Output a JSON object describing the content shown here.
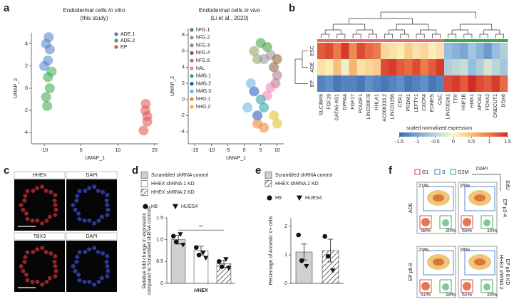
{
  "panels": [
    "a",
    "b",
    "c",
    "d",
    "e",
    "f"
  ],
  "chart_data": [
    {
      "type": "scatter",
      "title": [
        "Endodermal cells ",
        "in vitro"
      ],
      "subtitle": "(this study)",
      "x_label": "UMAP_1",
      "y_label": "UMAP_2",
      "legend": "upper right",
      "xlim": [
        -13.5,
        21
      ],
      "xticks": [
        -10,
        0,
        10,
        20
      ],
      "ylim": [
        -5,
        5
      ],
      "yticks": [
        -4,
        -2,
        0,
        2,
        4
      ],
      "series": [
        {
          "name": "ADE.1",
          "color": "#4a7fc8",
          "x": [
            -9.5,
            -8.5,
            -9,
            -10,
            -8.8
          ],
          "y": [
            4,
            3.5,
            2.5,
            2,
            4.6
          ]
        },
        {
          "name": "ADE.2",
          "color": "#3aa64a",
          "x": [
            -9,
            -8.5,
            -9.5,
            -8,
            -9.2
          ],
          "y": [
            1,
            0,
            -0.8,
            1.5,
            -1.6
          ]
        },
        {
          "name": "EP",
          "color": "#e05050",
          "x": [
            17.5,
            18,
            17,
            18,
            17.6
          ],
          "y": [
            -2,
            -3,
            -3.8,
            -2.5,
            -1.4
          ]
        }
      ]
    },
    {
      "type": "scatter",
      "title": [
        "Endodermal cells ",
        "in vivo"
      ],
      "subtitle": "(Li et al., 2020)",
      "x_label": "UMAP_1",
      "y_label": "UMAP_2",
      "legend": "upper left",
      "xlim": [
        -17,
        12
      ],
      "xticks": [
        -15,
        -10,
        -5,
        0,
        5,
        10
      ],
      "ylim": [
        -5.5,
        8.8
      ],
      "yticks": [
        -4,
        -2,
        0,
        2,
        4,
        6,
        8
      ],
      "series": [
        {
          "name": "hFG.1",
          "color": "#3a9a3a",
          "x": [
            5,
            7
          ],
          "y": [
            7,
            6.5
          ]
        },
        {
          "name": "hFG.2",
          "color": "#8aa060",
          "x": [
            3,
            4
          ],
          "y": [
            6,
            5
          ]
        },
        {
          "name": "hFG.3",
          "color": "#909090",
          "x": [
            6,
            8
          ],
          "y": [
            5,
            5.5
          ]
        },
        {
          "name": "hFG.4",
          "color": "#8a5a2a",
          "x": [
            9,
            10
          ],
          "y": [
            4,
            5
          ]
        },
        {
          "name": "hFG.5",
          "color": "#b07090",
          "x": [
            10,
            9.5
          ],
          "y": [
            3,
            2
          ]
        },
        {
          "name": "hAL",
          "color": "#f080b0",
          "x": [
            8,
            7
          ],
          "y": [
            1.5,
            0.5
          ]
        },
        {
          "name": "hMG.1",
          "color": "#20a0a0",
          "x": [
            5,
            6
          ],
          "y": [
            0,
            -1
          ]
        },
        {
          "name": "hMG.2",
          "color": "#2050c0",
          "x": [
            3,
            4
          ],
          "y": [
            1,
            -2
          ]
        },
        {
          "name": "hMG.3",
          "color": "#60b0e0",
          "x": [
            2,
            1
          ],
          "y": [
            2,
            -1
          ]
        },
        {
          "name": "hHG.1",
          "color": "#f08020",
          "x": [
            4,
            6
          ],
          "y": [
            -3,
            -3.5
          ]
        },
        {
          "name": "hHG.2",
          "color": "#e0c020",
          "x": [
            9,
            10
          ],
          "y": [
            -2,
            -3
          ]
        }
      ]
    },
    {
      "type": "heatmap",
      "rows": [
        "ESC",
        "ADE",
        "EP"
      ],
      "columns": [
        "SLC38A5",
        "FGF19",
        "GATA6-AS1",
        "DPPA4",
        "FGF17",
        "POU5F1",
        "LINC00678",
        "HHLA1",
        "AC006333.2",
        "LINC01356",
        "CER1",
        "PRDM1",
        "LEFTY1",
        "CXCR4",
        "EOMES",
        "GSC",
        "LINC00261",
        "TTR",
        "HNF1B",
        "HMX1",
        "APOA2",
        "FOXA2",
        "ONECUT1",
        "DDX6"
      ],
      "values": [
        [
          1.2,
          1.3,
          1.0,
          1.4,
          0.9,
          1.3,
          1.1,
          1.0,
          0.3,
          0.2,
          0.1,
          0.4,
          0.2,
          0.3,
          0.1,
          0.2,
          -0.8,
          -0.9,
          -1.0,
          -0.7,
          -0.9,
          -1.1,
          -0.8,
          -0.6
        ],
        [
          0.2,
          0.1,
          0.5,
          -0.1,
          0.6,
          0.2,
          0.3,
          0.4,
          1.3,
          1.4,
          1.2,
          1.1,
          1.3,
          1.0,
          1.2,
          1.4,
          -0.6,
          -0.5,
          -0.4,
          -0.8,
          -0.6,
          -0.3,
          -0.5,
          -0.7
        ],
        [
          -1.3,
          -1.2,
          -1.4,
          -1.3,
          -1.3,
          -1.4,
          -1.2,
          -1.3,
          -1.4,
          -1.3,
          -1.2,
          -1.4,
          -1.3,
          -1.2,
          -1.4,
          -1.3,
          1.3,
          1.4,
          1.2,
          1.5,
          1.3,
          1.2,
          1.4,
          1.1
        ]
      ],
      "clim": [
        -1.5,
        1.5
      ],
      "cbar_ticks": [
        -1.5,
        -1,
        -0.5,
        0,
        0.5,
        1,
        1.5
      ],
      "cbar_label": "scaled normalized expression"
    },
    {
      "type": "bar",
      "categories": [
        "Scrambled shRNA control",
        "HHEX shRNA 1 KD",
        "HHEX shRNA 2 KD"
      ],
      "values": [
        1.0,
        0.75,
        0.45
      ],
      "errors": [
        0.1,
        0.1,
        0.08
      ],
      "colors": [
        "#d0d0d0",
        "#ffffff",
        "#ffffff"
      ],
      "hatch": [
        false,
        false,
        true
      ],
      "points": [
        {
          "name": "H9",
          "marker": "circle",
          "values": [
            [
              1.08,
              0.95
            ],
            [
              0.82,
              0.65
            ],
            [
              0.5,
              0.38
            ]
          ]
        },
        {
          "name": "HUES4",
          "marker": "triangle",
          "values": [
            [
              1.12,
              0.88
            ],
            [
              0.7,
              0.58
            ],
            [
              0.55,
              0.35
            ]
          ]
        }
      ],
      "ylim": [
        0,
        1.5
      ],
      "yticks": [
        0,
        0.5,
        {
          "value": 1,
          "label": "1.0"
        },
        1.5
      ],
      "y_label": [
        "Relative fold change in expression",
        "compared to Scrambled shRNA controls"
      ],
      "x_label": "HHEX",
      "significance": {
        "label": "**",
        "between": [
          0,
          2
        ],
        "y": 1.22
      }
    },
    {
      "type": "bar",
      "categories": [
        "Scrambled shRNA control",
        "HHEX shRNA 2 KD"
      ],
      "values": [
        1.1,
        1.15
      ],
      "errors": [
        0.28,
        0.4
      ],
      "colors": [
        "#d0d0d0",
        "#ffffff"
      ],
      "hatch": [
        false,
        true
      ],
      "points": [
        {
          "name": "H9",
          "marker": "circle",
          "values": [
            [
              1.7,
              0.8
            ],
            [
              1.65,
              0.95
            ]
          ]
        },
        {
          "name": "HUES4",
          "marker": "triangle",
          "values": [
            [
              0.6
            ],
            [
              0.45
            ]
          ]
        }
      ],
      "ylim": [
        0,
        2.3
      ],
      "yticks": [
        0,
        1,
        2
      ],
      "y_label": [
        "Percentage of Annexin V+ cells"
      ]
    }
  ],
  "panel_c": {
    "rows": [
      [
        "HHEX",
        "DAPI"
      ],
      [
        "TBX3",
        "DAPI"
      ]
    ]
  },
  "panel_f": {
    "legend": [
      "G1",
      "S",
      "G2M"
    ],
    "x_axis": "DAPI",
    "y_axis": "EdU",
    "row_labels": [
      "ADE",
      "EP p6-8"
    ],
    "right_labels": [
      [
        "EP p3-4"
      ],
      [
        "HHEX shRNA 2",
        "EP p6-8 KD"
      ]
    ],
    "plots": [
      [
        [
          "21%",
          "58%",
          "20%"
        ],
        [
          "25%",
          "55%",
          "15%"
        ]
      ],
      [
        [
          "23%",
          "51%",
          "18%"
        ],
        [
          "28%",
          "51%",
          "20%"
        ]
      ]
    ]
  }
}
